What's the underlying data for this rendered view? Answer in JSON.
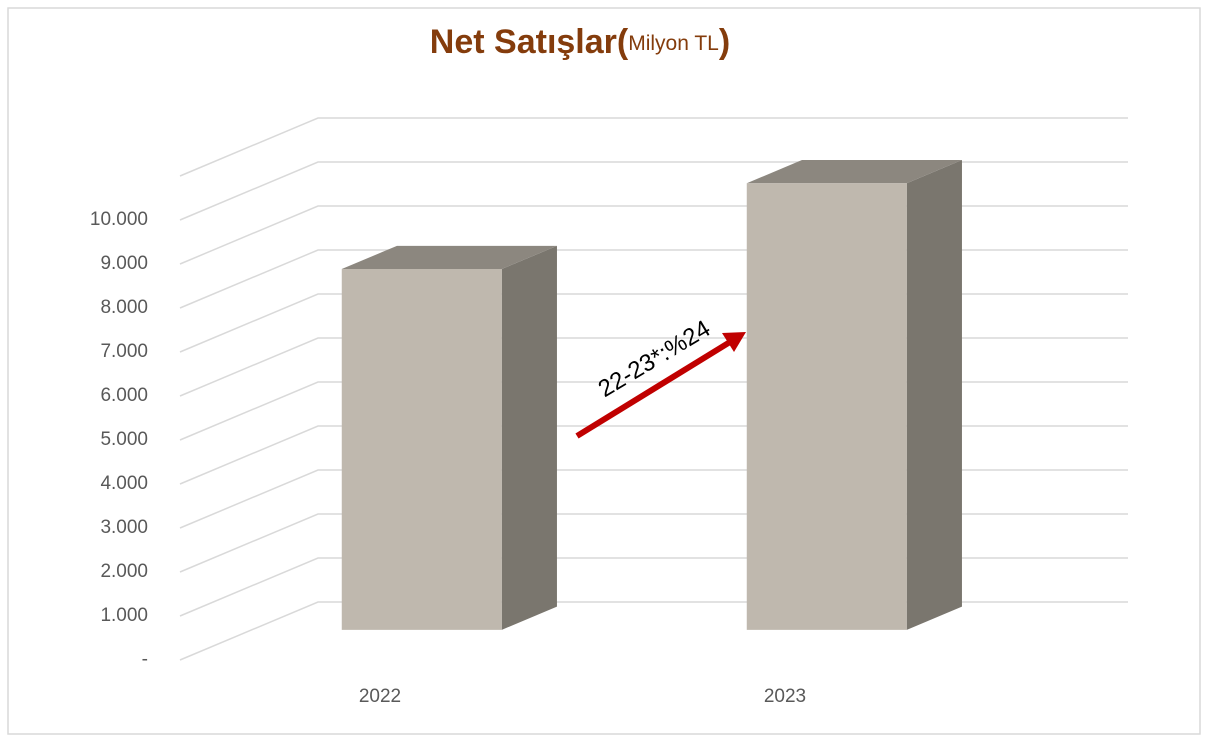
{
  "chart_data": {
    "type": "bar3d",
    "title": [
      "Net Satışlar(",
      "Milyon TL",
      ")"
    ],
    "categories": [
      "2022",
      "2023"
    ],
    "values": [
      8200,
      10150
    ],
    "color": "#bfb8ae",
    "ylim": [
      0,
      11000
    ],
    "yticks": [
      {
        "value": 0,
        "label": "-"
      },
      {
        "value": 1000,
        "label": "1.000"
      },
      {
        "value": 2000,
        "label": "2.000"
      },
      {
        "value": 3000,
        "label": "3.000"
      },
      {
        "value": 4000,
        "label": "4.000"
      },
      {
        "value": 5000,
        "label": "5.000"
      },
      {
        "value": 6000,
        "label": "6.000"
      },
      {
        "value": 7000,
        "label": "7.000"
      },
      {
        "value": 8000,
        "label": "8.000"
      },
      {
        "value": 9000,
        "label": "9.000"
      },
      {
        "value": 10000,
        "label": "10.000"
      }
    ],
    "grid": true,
    "annotation": "22-23*:%24"
  }
}
